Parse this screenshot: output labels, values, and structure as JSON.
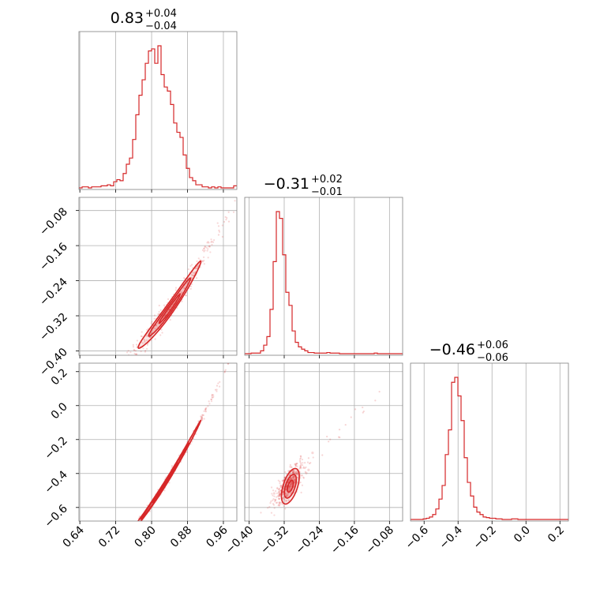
{
  "chart_data": {
    "type": "corner",
    "color": "#d62728",
    "parameters": [
      {
        "title": {
          "median": "0.83",
          "plus": "+0.04",
          "minus": "−0.04"
        },
        "tick_labels": [
          "0.64",
          "0.72",
          "0.80",
          "0.88",
          "0.96"
        ],
        "ticks": [
          0.64,
          0.72,
          0.8,
          0.88,
          0.96
        ],
        "range": [
          0.638,
          0.99
        ]
      },
      {
        "title": {
          "median": "−0.31",
          "plus": "+0.02",
          "minus": "−0.01"
        },
        "tick_labels": [
          "−0.40",
          "−0.32",
          "−0.24",
          "−0.16",
          "−0.08"
        ],
        "ticks": [
          -0.4,
          -0.32,
          -0.24,
          -0.16,
          -0.08
        ],
        "range": [
          -0.41,
          -0.05
        ]
      },
      {
        "title": {
          "median": "−0.46",
          "plus": "+0.06",
          "minus": "−0.06"
        },
        "tick_labels": [
          "−0.6",
          "−0.4",
          "−0.2",
          "0.0",
          "0.2"
        ],
        "ticks": [
          -0.6,
          -0.4,
          -0.2,
          0.0,
          0.2
        ],
        "range": [
          -0.68,
          0.25
        ]
      }
    ],
    "histograms": [
      {
        "param": 0,
        "bin_start": 0.638,
        "bin_width": 0.00704,
        "counts": [
          0,
          1,
          1,
          0,
          1,
          1,
          1,
          2,
          2,
          3,
          2,
          6,
          8,
          7,
          14,
          23,
          29,
          47,
          71,
          90,
          105,
          121,
          133,
          135,
          121,
          138,
          110,
          98,
          94,
          81,
          63,
          54,
          49,
          32,
          19,
          10,
          7,
          3,
          3,
          1,
          1,
          0,
          1,
          0,
          1,
          0,
          0,
          0,
          0,
          2
        ]
      },
      {
        "param": 1,
        "bin_start": -0.41,
        "bin_width": 0.0072,
        "counts": [
          0,
          0,
          1,
          1,
          1,
          5,
          15,
          30,
          78,
          162,
          250,
          238,
          174,
          108,
          85,
          40,
          20,
          12,
          8,
          5,
          2,
          2,
          1,
          1,
          1,
          1,
          2,
          1,
          1,
          1,
          0,
          0,
          0,
          0,
          0,
          0,
          0,
          0,
          0,
          0,
          0,
          1,
          0,
          0,
          0,
          0,
          0,
          0,
          0,
          0
        ]
      },
      {
        "param": 2,
        "bin_start": -0.68,
        "bin_width": 0.0186,
        "counts": [
          0,
          0,
          0,
          0,
          1,
          2,
          4,
          8,
          17,
          33,
          55,
          105,
          145,
          222,
          230,
          200,
          160,
          100,
          60,
          38,
          20,
          12,
          8,
          4,
          3,
          2,
          2,
          1,
          1,
          0,
          0,
          0,
          1,
          1,
          0,
          0,
          0,
          0,
          0,
          0,
          0,
          0,
          0,
          0,
          0,
          0,
          0,
          0,
          0,
          0
        ]
      }
    ],
    "pairs": [
      {
        "x_param": 0,
        "y_param": 1,
        "center": [
          0.84,
          -0.305
        ],
        "slope": 1.4,
        "curvature": 2.2,
        "spread": [
          0.035,
          0.012
        ]
      },
      {
        "x_param": 0,
        "y_param": 2,
        "center": [
          0.83,
          -0.46
        ],
        "slope": 4.2,
        "curvature": 6.0,
        "spread": [
          0.04,
          0.012
        ]
      },
      {
        "x_param": 1,
        "y_param": 2,
        "center": [
          -0.31,
          -0.46
        ],
        "slope": 2.8,
        "curvature": 0.0,
        "spread": [
          0.012,
          0.04
        ]
      }
    ],
    "grid": true,
    "contour_levels": 3
  }
}
